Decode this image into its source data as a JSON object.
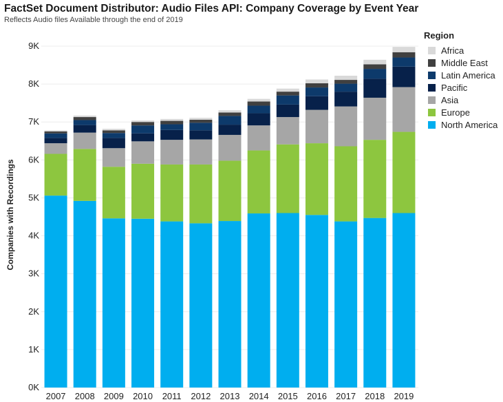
{
  "header": {
    "title": "FactSet Document Distributor: Audio Files API: Company Coverage by Event Year",
    "subtitle": "Reflects Audio files Available through the end of 2019"
  },
  "legend": {
    "title": "Region",
    "items": [
      {
        "label": "Africa",
        "color": "#d9d9d9"
      },
      {
        "label": "Middle East",
        "color": "#404040"
      },
      {
        "label": "Latin America",
        "color": "#0d3a6b"
      },
      {
        "label": "Pacific",
        "color": "#07214a"
      },
      {
        "label": "Asia",
        "color": "#a6a6a6"
      },
      {
        "label": "Europe",
        "color": "#8dc63f"
      },
      {
        "label": "North America",
        "color": "#00aeef"
      }
    ]
  },
  "chart_data": {
    "type": "bar",
    "stacked": true,
    "title": "FactSet Document Distributor: Audio Files API: Company Coverage by Event Year",
    "subtitle": "Reflects Audio files Available through the end of 2019",
    "xlabel": "",
    "ylabel": "Companies with Recordings",
    "ylim": [
      0,
      9000
    ],
    "yticks": [
      0,
      1000,
      2000,
      3000,
      4000,
      5000,
      6000,
      7000,
      8000,
      9000
    ],
    "ytick_labels": [
      "0K",
      "1K",
      "2K",
      "3K",
      "4K",
      "5K",
      "6K",
      "7K",
      "8K",
      "9K"
    ],
    "grid": true,
    "legend_position": "top-right",
    "categories": [
      "2007",
      "2008",
      "2009",
      "2010",
      "2011",
      "2012",
      "2013",
      "2014",
      "2015",
      "2016",
      "2017",
      "2018",
      "2019"
    ],
    "series": [
      {
        "name": "North America",
        "color": "#00aeef",
        "values": [
          5060,
          4920,
          4460,
          4450,
          4380,
          4330,
          4390,
          4590,
          4600,
          4550,
          4380,
          4470,
          4600
        ]
      },
      {
        "name": "Europe",
        "color": "#8dc63f",
        "values": [
          1100,
          1370,
          1360,
          1450,
          1500,
          1550,
          1590,
          1660,
          1810,
          1890,
          1980,
          2060,
          2140
        ]
      },
      {
        "name": "Asia",
        "color": "#a6a6a6",
        "values": [
          280,
          430,
          490,
          590,
          650,
          660,
          680,
          660,
          720,
          880,
          1050,
          1110,
          1180
        ]
      },
      {
        "name": "Pacific",
        "color": "#07214a",
        "values": [
          140,
          200,
          270,
          210,
          260,
          240,
          270,
          320,
          330,
          360,
          390,
          500,
          540
        ]
      },
      {
        "name": "Latin America",
        "color": "#0d3a6b",
        "values": [
          120,
          130,
          130,
          210,
          150,
          200,
          230,
          200,
          240,
          230,
          210,
          260,
          240
        ]
      },
      {
        "name": "Middle East",
        "color": "#404040",
        "values": [
          50,
          80,
          70,
          90,
          90,
          80,
          90,
          110,
          100,
          110,
          100,
          120,
          140
        ]
      },
      {
        "name": "Africa",
        "color": "#d9d9d9",
        "values": [
          30,
          40,
          40,
          40,
          50,
          50,
          60,
          70,
          80,
          100,
          110,
          120,
          140
        ]
      }
    ]
  }
}
